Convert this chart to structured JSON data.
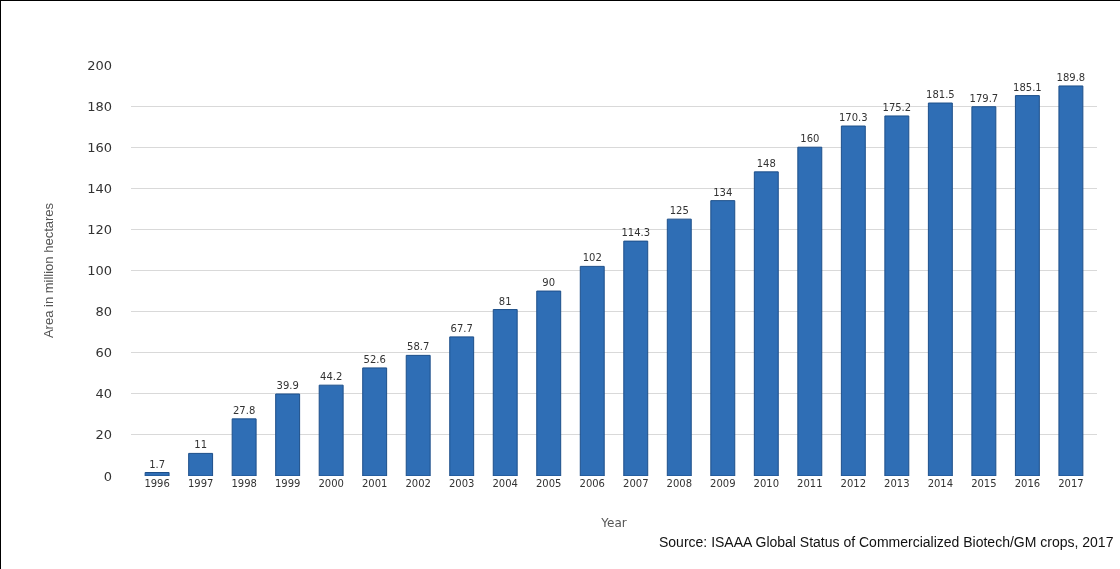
{
  "chart_data": {
    "type": "bar",
    "categories": [
      "1996",
      "1997",
      "1998",
      "1999",
      "2000",
      "2001",
      "2002",
      "2003",
      "2004",
      "2005",
      "2006",
      "2007",
      "2008",
      "2009",
      "2010",
      "2011",
      "2012",
      "2013",
      "2014",
      "2015",
      "2016",
      "2017"
    ],
    "values": [
      1.7,
      11,
      27.8,
      39.9,
      44.2,
      52.6,
      58.7,
      67.7,
      81,
      90,
      102,
      114.3,
      125,
      134,
      148,
      160,
      170.3,
      175.2,
      181.5,
      179.7,
      185.1,
      189.8
    ],
    "color": "#2f6eb5",
    "xlabel": "Year",
    "ylabel": "Area in million hectares",
    "ylim": [
      0,
      200
    ],
    "yticks": [
      0,
      20,
      40,
      60,
      80,
      100,
      120,
      140,
      160,
      180,
      200
    ],
    "grid": "y",
    "data_labels": true,
    "annotations": [
      "Source: ISAAA Global Status of Commercialized Biotech/GM crops, 2017"
    ]
  }
}
